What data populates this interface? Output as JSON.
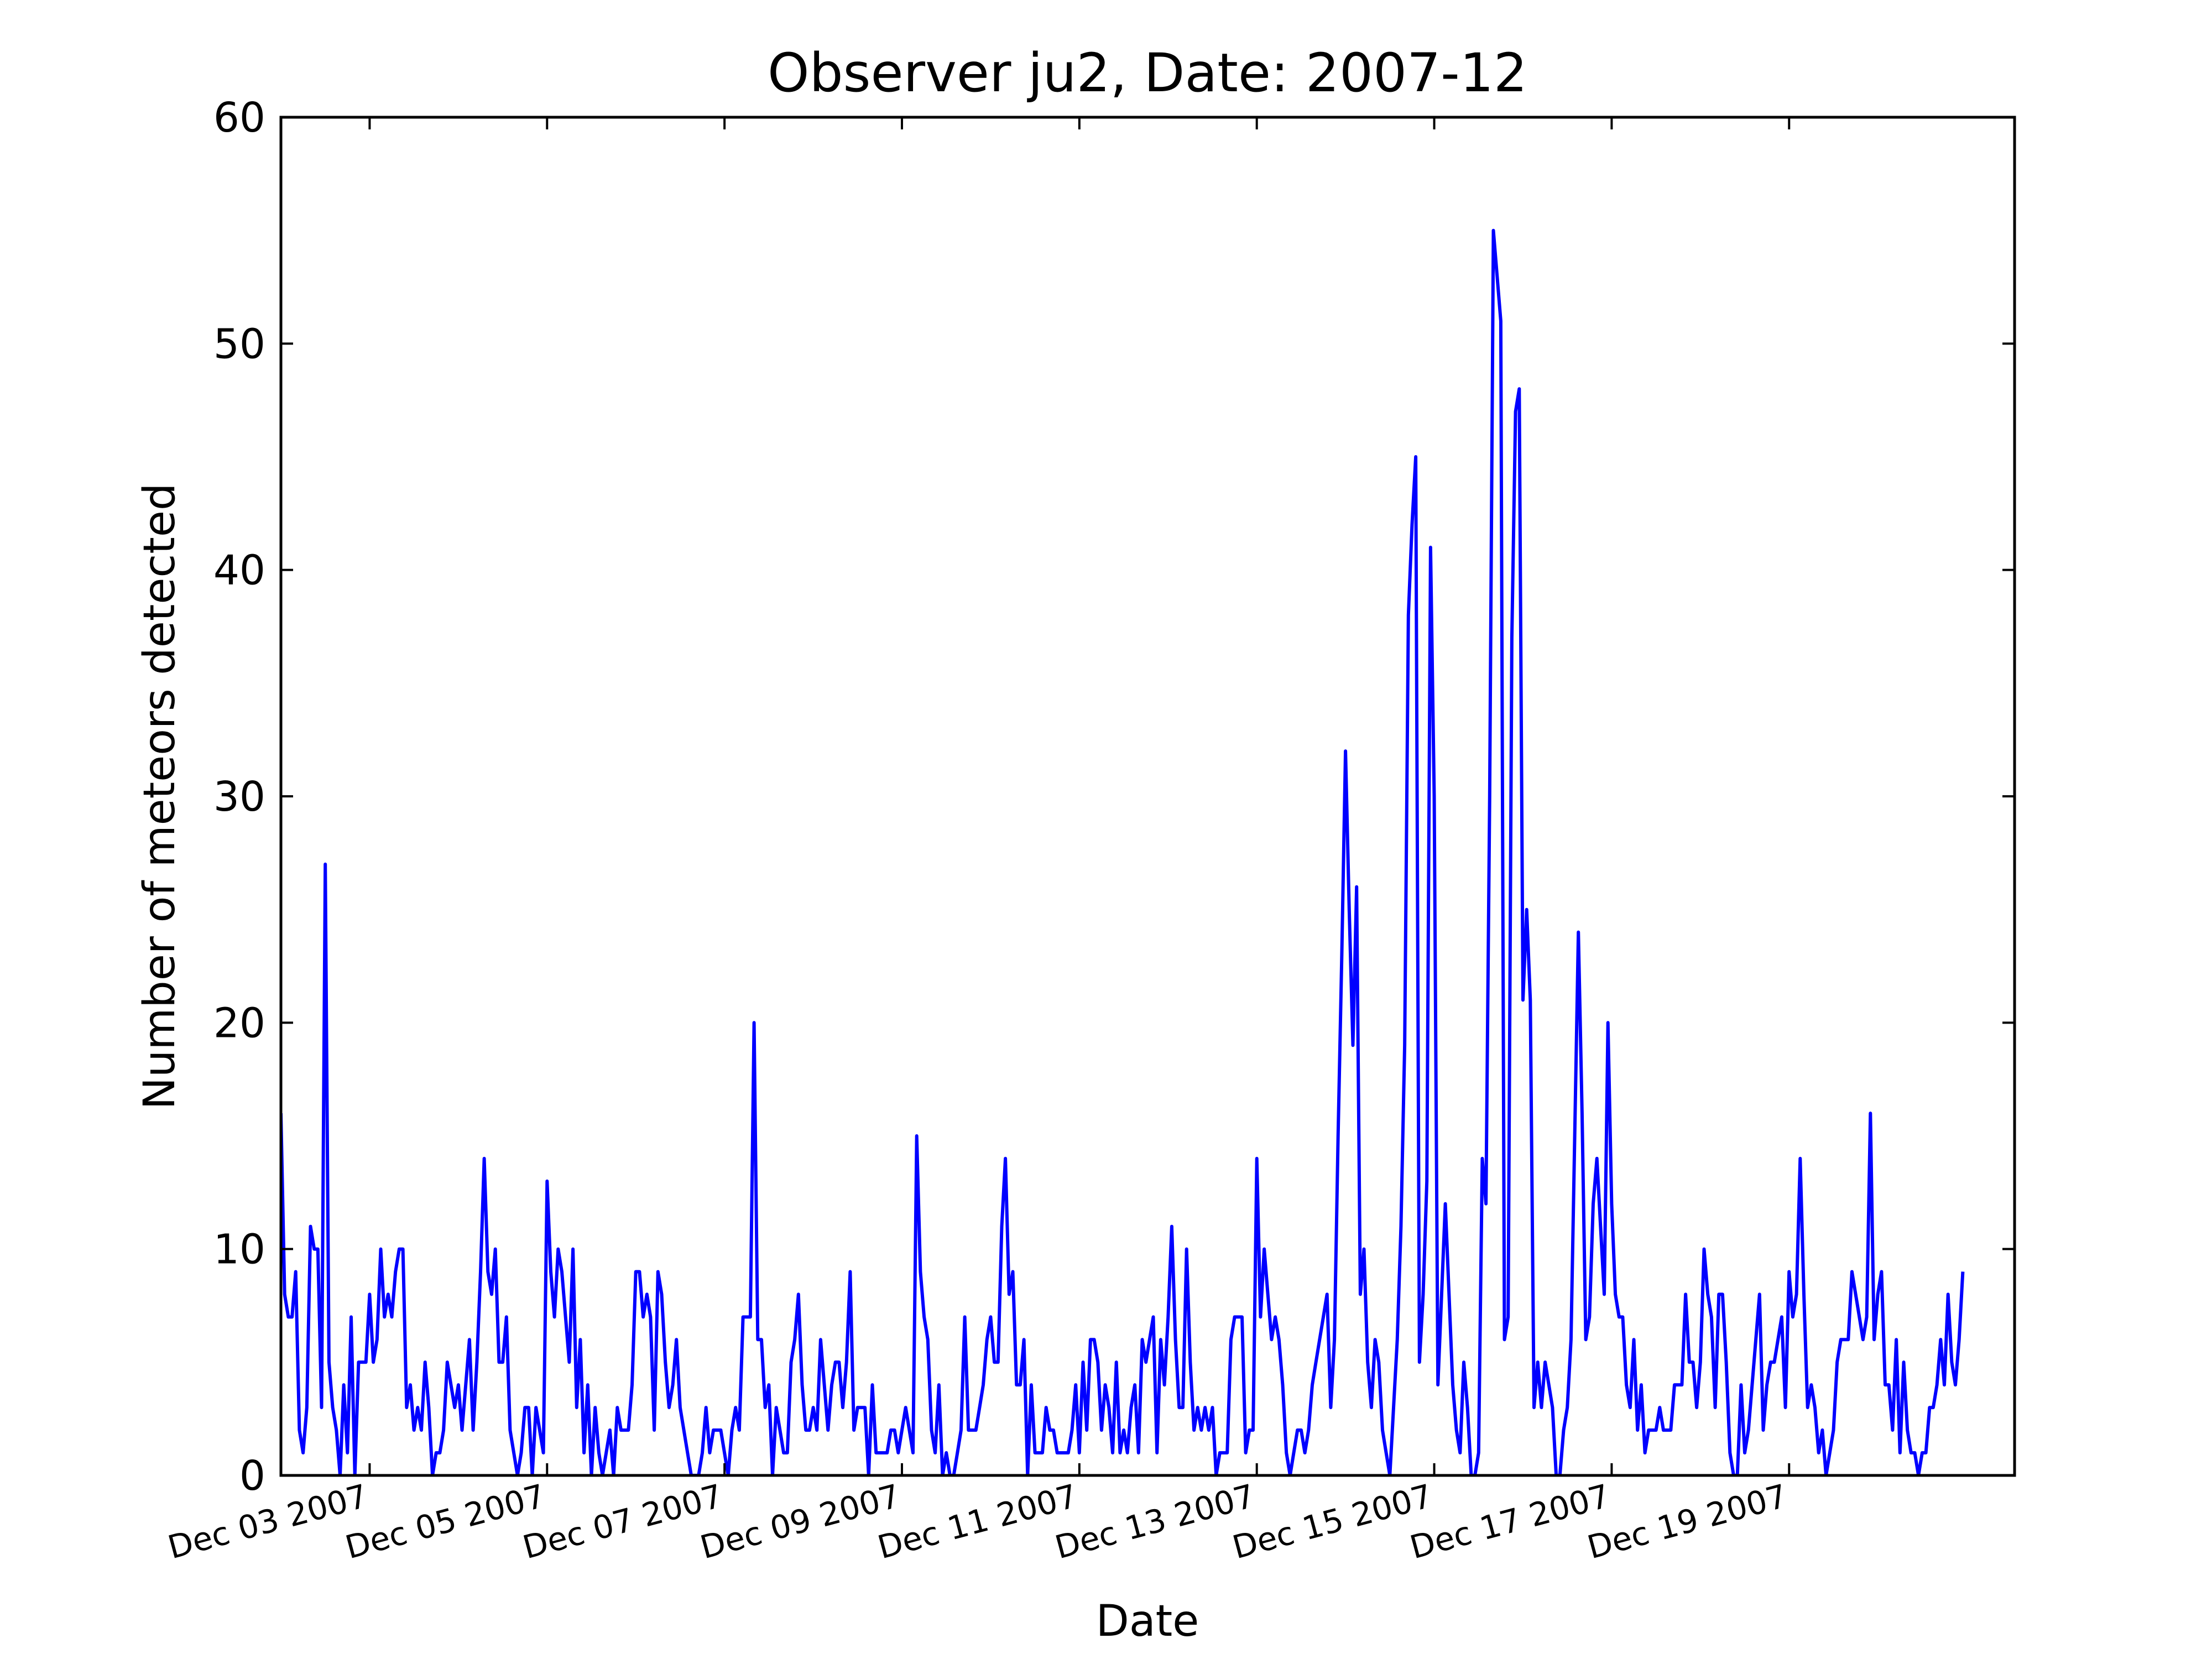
{
  "chart_data": {
    "type": "line",
    "title": "Observer ju2, Date: 2007-12",
    "xlabel": "Date",
    "ylabel": "Number of meteors detected",
    "ylim": [
      0,
      60
    ],
    "yticks": [
      0,
      10,
      20,
      30,
      40,
      50,
      60
    ],
    "xlim": [
      "2007-12-02T00:00",
      "2007-12-21T13:00"
    ],
    "xticks": [
      {
        "value": "2007-12-03T00:00",
        "label": "Dec 03 2007"
      },
      {
        "value": "2007-12-05T00:00",
        "label": "Dec 05 2007"
      },
      {
        "value": "2007-12-07T00:00",
        "label": "Dec 07 2007"
      },
      {
        "value": "2007-12-09T00:00",
        "label": "Dec 09 2007"
      },
      {
        "value": "2007-12-11T00:00",
        "label": "Dec 11 2007"
      },
      {
        "value": "2007-12-13T00:00",
        "label": "Dec 13 2007"
      },
      {
        "value": "2007-12-15T00:00",
        "label": "Dec 15 2007"
      },
      {
        "value": "2007-12-17T00:00",
        "label": "Dec 17 2007"
      },
      {
        "value": "2007-12-19T00:00",
        "label": "Dec 19 2007"
      }
    ],
    "grid": false,
    "line_color": "#0000ff",
    "series": [
      {
        "x_start": "2007-12-02T00:00",
        "x_step_hours": 1,
        "values": [
          16,
          8,
          7,
          7,
          9,
          2,
          1,
          3,
          11,
          10,
          10,
          3,
          27,
          5,
          3,
          2,
          0,
          4,
          1,
          7,
          0,
          5,
          5,
          5,
          8,
          5,
          6,
          10,
          7,
          8,
          7,
          9,
          10,
          10,
          3,
          4,
          2,
          3,
          2,
          5,
          3,
          0,
          1,
          1,
          2,
          5,
          4,
          3,
          4,
          2,
          4,
          6,
          2,
          5,
          9,
          14,
          9,
          8,
          10,
          5,
          5,
          7,
          2,
          1,
          0,
          1,
          3,
          3,
          0,
          3,
          2,
          1,
          13,
          9,
          7,
          10,
          9,
          7,
          5,
          10,
          3,
          6,
          1,
          4,
          0,
          3,
          1,
          0,
          1,
          2,
          0,
          3,
          2,
          2,
          2,
          4,
          9,
          9,
          7,
          8,
          7,
          2,
          9,
          8,
          5,
          3,
          4,
          6,
          3,
          2,
          1,
          0,
          0,
          0,
          1,
          3,
          1,
          2,
          2,
          2,
          1,
          0,
          2,
          3,
          2,
          7,
          7,
          7,
          20,
          6,
          6,
          3,
          4,
          0,
          3,
          2,
          1,
          1,
          5,
          6,
          8,
          4,
          2,
          2,
          3,
          2,
          6,
          4,
          2,
          4,
          5,
          5,
          3,
          5,
          9,
          2,
          3,
          3,
          3,
          0,
          4,
          1,
          1,
          1,
          1,
          2,
          2,
          1,
          2,
          3,
          2,
          1,
          15,
          9,
          7,
          6,
          2,
          1,
          4,
          0,
          1,
          0,
          0,
          1,
          2,
          7,
          2,
          2,
          2,
          3,
          4,
          6,
          7,
          5,
          5,
          11,
          14,
          8,
          9,
          4,
          4,
          6,
          0,
          4,
          1,
          1,
          1,
          3,
          2,
          2,
          1,
          1,
          1,
          1,
          2,
          4,
          1,
          5,
          2,
          6,
          6,
          5,
          2,
          4,
          3,
          1,
          5,
          1,
          2,
          1,
          3,
          4,
          1,
          6,
          5,
          6,
          7,
          1,
          6,
          4,
          7,
          11,
          6,
          3,
          3,
          10,
          5,
          2,
          3,
          2,
          3,
          2,
          3,
          0,
          1,
          1,
          1,
          6,
          7,
          7,
          7,
          1,
          2,
          2,
          14,
          7,
          10,
          8,
          6,
          7,
          6,
          4,
          1,
          0,
          1,
          2,
          2,
          1,
          2,
          4,
          5,
          6,
          7,
          8,
          3,
          6,
          15,
          23,
          32,
          25,
          19,
          26,
          8,
          10,
          5,
          3,
          6,
          5,
          2,
          1,
          0,
          3,
          6,
          11,
          19,
          38,
          42,
          45,
          5,
          8,
          13,
          41,
          30,
          4,
          8,
          12,
          8,
          4,
          2,
          1,
          5,
          3,
          0,
          0,
          1,
          14,
          12,
          30,
          55,
          53,
          51,
          6,
          7,
          37,
          47,
          48,
          21,
          25,
          21,
          3,
          5,
          3,
          5,
          4,
          3,
          0,
          0,
          2,
          3,
          6,
          15,
          24,
          16,
          6,
          7,
          12,
          14,
          11,
          8,
          20,
          12,
          8,
          7,
          7,
          4,
          3,
          6,
          2,
          4,
          1,
          2,
          2,
          2,
          3,
          2,
          2,
          2,
          4,
          4,
          4,
          8,
          5,
          5,
          3,
          5,
          10,
          8,
          7,
          3,
          8,
          8,
          5,
          1,
          0,
          0,
          4,
          1,
          2,
          4,
          6,
          8,
          2,
          4,
          5,
          5,
          6,
          7,
          3,
          9,
          7,
          8,
          14,
          8,
          3,
          4,
          3,
          1,
          2,
          0,
          1,
          2,
          5,
          6,
          6,
          6,
          9,
          8,
          7,
          6,
          7,
          16,
          6,
          8,
          9,
          4,
          4,
          2,
          6,
          1,
          5,
          2,
          1,
          1,
          0,
          1,
          1,
          3,
          3,
          4,
          6,
          4,
          8,
          5,
          4,
          6,
          9
        ]
      }
    ]
  }
}
